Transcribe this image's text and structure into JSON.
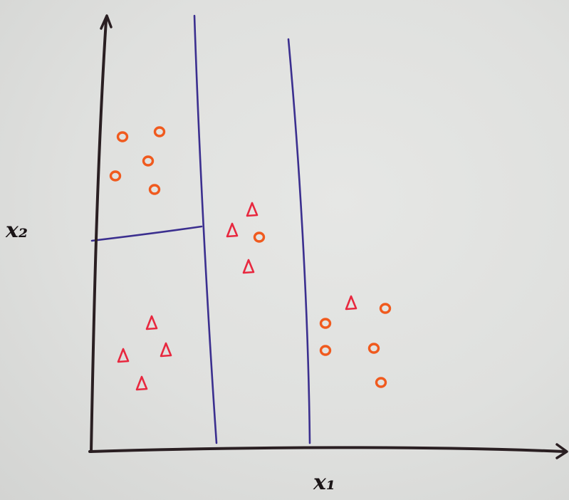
{
  "axes": {
    "x_label": "x₁",
    "y_label": "x₂"
  },
  "colors": {
    "axis": "#2a1f22",
    "split_line": "#3b2f8f",
    "circle": "#f05a1e",
    "triangle": "#e8283f",
    "paper": "#e2e3e1"
  },
  "diagram": {
    "type": "decision-tree-partition",
    "regions": [
      {
        "name": "upper-left",
        "points": [
          "circle",
          "circle",
          "circle",
          "circle",
          "circle"
        ]
      },
      {
        "name": "lower-left",
        "points": [
          "triangle",
          "triangle",
          "triangle",
          "triangle"
        ]
      },
      {
        "name": "middle",
        "points": [
          "triangle",
          "triangle",
          "triangle",
          "circle"
        ]
      },
      {
        "name": "right",
        "points": [
          "triangle",
          "circle",
          "circle",
          "circle",
          "circle",
          "circle"
        ]
      }
    ]
  }
}
